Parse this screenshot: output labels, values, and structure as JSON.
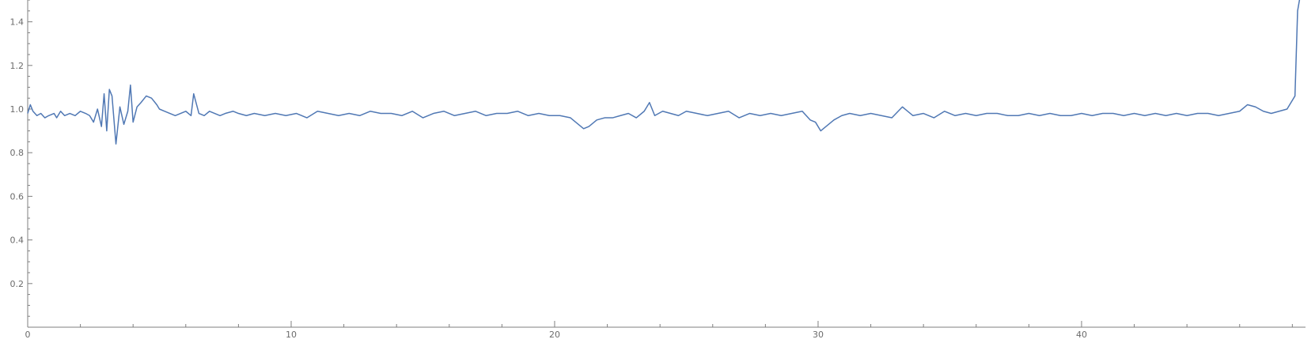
{
  "chart_data": {
    "type": "line",
    "title": "",
    "xlabel": "",
    "ylabel": "",
    "xlim": [
      0,
      48.5
    ],
    "ylim": [
      0.0,
      1.5
    ],
    "x_ticks_major": [
      0,
      10,
      20,
      30,
      40
    ],
    "x_tick_labels": [
      "0",
      "10",
      "20",
      "30",
      "40"
    ],
    "x_minor_step": 2,
    "y_ticks_major": [
      0.2,
      0.4,
      0.6,
      0.8,
      1.0,
      1.2,
      1.4
    ],
    "y_tick_labels": [
      "0.2",
      "0.4",
      "0.6",
      "0.8",
      "1.0",
      "1.2",
      "1.4"
    ],
    "y_minor_step": 0.05,
    "grid": false,
    "line_color": "#5078b4",
    "series": [
      {
        "x": [
          0.0,
          0.1,
          0.2,
          0.35,
          0.5,
          0.65,
          0.8,
          1.0,
          1.1,
          1.25,
          1.4,
          1.6,
          1.8,
          2.0,
          2.2,
          2.35,
          2.5,
          2.65,
          2.8,
          2.9,
          3.0,
          3.1,
          3.2,
          3.35,
          3.5,
          3.65,
          3.8,
          3.9,
          4.0,
          4.15,
          4.3,
          4.5,
          4.7,
          4.9,
          5.0,
          5.2,
          5.4,
          5.6,
          5.8,
          6.0,
          6.2,
          6.3,
          6.5,
          6.7,
          6.9,
          7.1,
          7.3,
          7.5,
          7.8,
          8.0,
          8.3,
          8.6,
          9.0,
          9.4,
          9.8,
          10.2,
          10.6,
          11.0,
          11.4,
          11.8,
          12.2,
          12.6,
          13.0,
          13.4,
          13.8,
          14.2,
          14.6,
          15.0,
          15.4,
          15.8,
          16.2,
          16.6,
          17.0,
          17.4,
          17.8,
          18.2,
          18.6,
          19.0,
          19.4,
          19.8,
          20.2,
          20.6,
          20.9,
          21.1,
          21.3,
          21.6,
          21.9,
          22.2,
          22.5,
          22.8,
          23.1,
          23.4,
          23.6,
          23.8,
          24.1,
          24.4,
          24.7,
          25.0,
          25.4,
          25.8,
          26.2,
          26.6,
          27.0,
          27.4,
          27.8,
          28.2,
          28.6,
          29.0,
          29.4,
          29.7,
          29.9,
          30.1,
          30.3,
          30.6,
          30.9,
          31.2,
          31.6,
          32.0,
          32.4,
          32.8,
          33.2,
          33.6,
          34.0,
          34.4,
          34.8,
          35.2,
          35.6,
          36.0,
          36.4,
          36.8,
          37.2,
          37.6,
          38.0,
          38.4,
          38.8,
          39.2,
          39.6,
          40.0,
          40.4,
          40.8,
          41.2,
          41.6,
          42.0,
          42.4,
          42.8,
          43.2,
          43.6,
          44.0,
          44.4,
          44.8,
          45.2,
          45.6,
          46.0,
          46.3,
          46.6,
          46.9,
          47.2,
          47.5,
          47.8,
          48.1,
          48.2,
          48.3
        ],
        "y": [
          0.98,
          1.02,
          0.99,
          0.97,
          0.98,
          0.96,
          0.97,
          0.98,
          0.96,
          0.99,
          0.97,
          0.98,
          0.97,
          0.99,
          0.98,
          0.97,
          0.94,
          1.0,
          0.92,
          1.07,
          0.9,
          1.09,
          1.06,
          0.84,
          1.01,
          0.93,
          0.99,
          1.11,
          0.94,
          1.01,
          1.03,
          1.06,
          1.05,
          1.02,
          1.0,
          0.99,
          0.98,
          0.97,
          0.98,
          0.99,
          0.97,
          1.07,
          0.98,
          0.97,
          0.99,
          0.98,
          0.97,
          0.98,
          0.99,
          0.98,
          0.97,
          0.98,
          0.97,
          0.98,
          0.97,
          0.98,
          0.96,
          0.99,
          0.98,
          0.97,
          0.98,
          0.97,
          0.99,
          0.98,
          0.98,
          0.97,
          0.99,
          0.96,
          0.98,
          0.99,
          0.97,
          0.98,
          0.99,
          0.97,
          0.98,
          0.98,
          0.99,
          0.97,
          0.98,
          0.97,
          0.97,
          0.96,
          0.93,
          0.91,
          0.92,
          0.95,
          0.96,
          0.96,
          0.97,
          0.98,
          0.96,
          0.99,
          1.03,
          0.97,
          0.99,
          0.98,
          0.97,
          0.99,
          0.98,
          0.97,
          0.98,
          0.99,
          0.96,
          0.98,
          0.97,
          0.98,
          0.97,
          0.98,
          0.99,
          0.95,
          0.94,
          0.9,
          0.92,
          0.95,
          0.97,
          0.98,
          0.97,
          0.98,
          0.97,
          0.96,
          1.01,
          0.97,
          0.98,
          0.96,
          0.99,
          0.97,
          0.98,
          0.97,
          0.98,
          0.98,
          0.97,
          0.97,
          0.98,
          0.97,
          0.98,
          0.97,
          0.97,
          0.98,
          0.97,
          0.98,
          0.98,
          0.97,
          0.98,
          0.97,
          0.98,
          0.97,
          0.98,
          0.97,
          0.98,
          0.98,
          0.97,
          0.98,
          0.99,
          1.02,
          1.01,
          0.99,
          0.98,
          0.99,
          1.0,
          1.06,
          1.45,
          1.52
        ]
      }
    ]
  }
}
